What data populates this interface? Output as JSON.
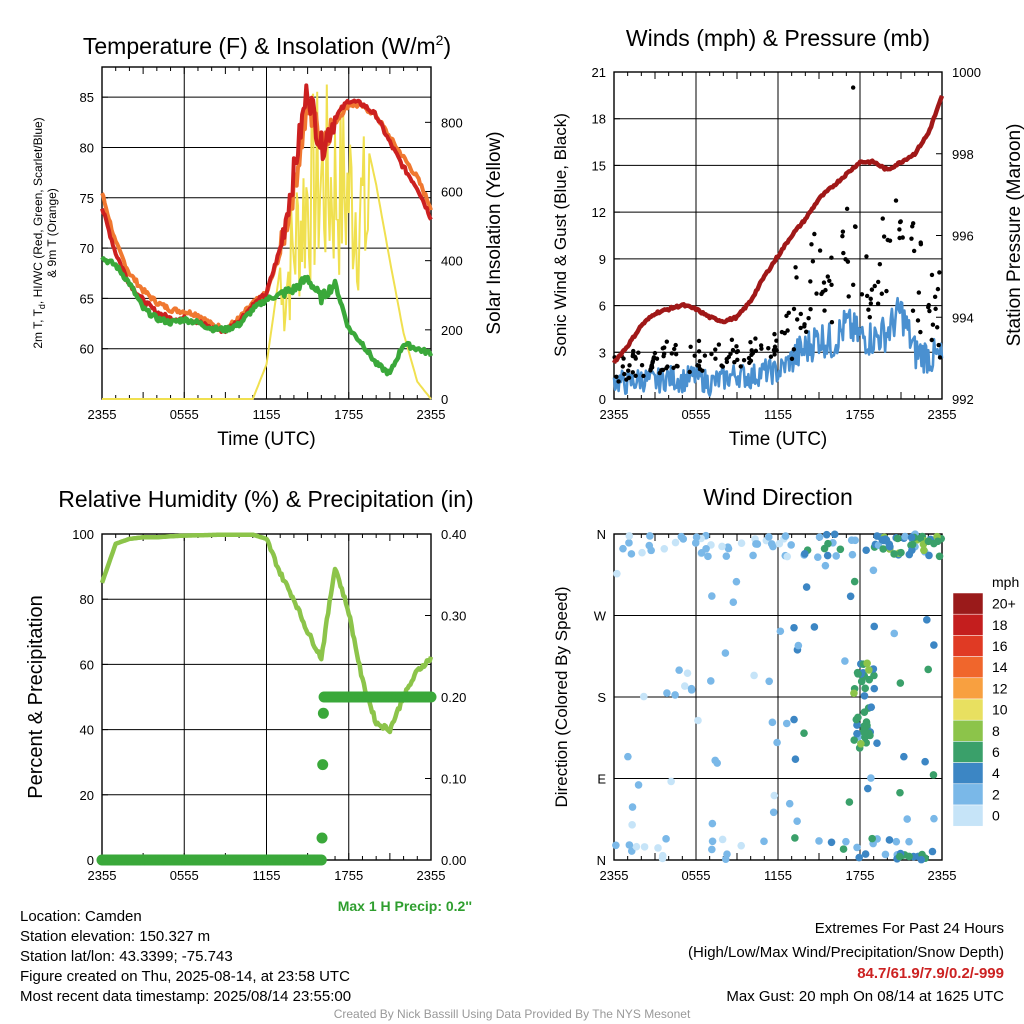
{
  "chart_data": [
    {
      "type": "line",
      "title": "Temperature (F) & Insolation (W/m²)",
      "title_main": "Temperature (F) & Insolation (W/m",
      "title_sup": "2",
      "title_end": ")",
      "xlabel": "Time (UTC)",
      "ylabel_line1": "2m T, T",
      "ylabel_sub": "d",
      "ylabel_line1_end": ", HI/WC (Red, Green, Scarlet/Blue)",
      "ylabel_line2": "& 9m T (Orange)",
      "y2label": "Solar Insolation (Yellow)",
      "xticks": [
        "2355",
        "0555",
        "1155",
        "1755",
        "2355"
      ],
      "ylim": [
        55,
        88
      ],
      "yticks": [
        60,
        65,
        70,
        75,
        80,
        85
      ],
      "y2lim": [
        0,
        960
      ],
      "y2ticks": [
        0,
        200,
        400,
        600,
        800
      ],
      "x_hours": [
        0,
        1,
        2,
        3,
        4,
        5,
        6,
        7,
        8,
        9,
        10,
        11,
        12,
        13,
        14,
        15,
        16,
        17,
        18,
        19,
        20,
        21,
        22,
        23,
        24
      ],
      "series": [
        {
          "name": "9m T",
          "color": "#f07830",
          "values": [
            75.5,
            70.5,
            67.5,
            65.8,
            64.6,
            63.9,
            63.7,
            63.4,
            62.4,
            62.0,
            63.0,
            64.5,
            65.5,
            69.5,
            76.0,
            84.0,
            81.0,
            82.5,
            84.3,
            84.1,
            83.2,
            81.0,
            79.0,
            77.0,
            74.0
          ]
        },
        {
          "name": "2m T",
          "color": "#cc2020",
          "values": [
            74.0,
            69.5,
            66.5,
            64.8,
            63.6,
            63.0,
            63.0,
            62.7,
            62.0,
            61.8,
            62.8,
            64.3,
            65.5,
            70.0,
            77.5,
            86.0,
            80.0,
            83.0,
            84.7,
            84.3,
            83.2,
            80.5,
            78.0,
            76.0,
            73.0
          ]
        },
        {
          "name": "Td",
          "color": "#3aa83a",
          "values": [
            69.0,
            68.3,
            66.5,
            64.0,
            63.0,
            62.6,
            62.9,
            62.6,
            62.0,
            61.9,
            62.4,
            63.9,
            64.9,
            65.4,
            65.9,
            67.0,
            65.0,
            66.5,
            62.0,
            60.5,
            58.5,
            57.5,
            60.5,
            60.0,
            59.5
          ]
        }
      ],
      "insolation": {
        "name": "Solar Insolation",
        "color": "#f0e050",
        "values": [
          0,
          0,
          0,
          0,
          0,
          0,
          0,
          0,
          0,
          0,
          0,
          0,
          100,
          380,
          650,
          880,
          930,
          900,
          880,
          800,
          620,
          400,
          190,
          50,
          0
        ]
      }
    },
    {
      "type": "scatter",
      "title": "Winds (mph) & Pressure (mb)",
      "xlabel": "Time (UTC)",
      "ylabel": "Sonic Wind & Gust (Blue, Black)",
      "y2label": "Station Pressure (Maroon)",
      "xticks": [
        "2355",
        "0555",
        "1155",
        "1755",
        "2355"
      ],
      "ylim": [
        0,
        21
      ],
      "yticks": [
        0,
        3,
        6,
        9,
        12,
        15,
        18,
        21
      ],
      "y2lim": [
        992,
        1000
      ],
      "y2ticks": [
        992,
        994,
        996,
        998,
        1000
      ],
      "x_hours": [
        0,
        1,
        2,
        3,
        4,
        5,
        6,
        7,
        8,
        9,
        10,
        11,
        12,
        13,
        14,
        15,
        16,
        17,
        18,
        19,
        20,
        21,
        22,
        23,
        24
      ],
      "series": [
        {
          "name": "Sonic Wind",
          "color": "#4a90d0",
          "values": [
            1.2,
            1.0,
            1.3,
            1.1,
            1.4,
            1.2,
            1.5,
            1.0,
            1.3,
            1.6,
            1.4,
            1.8,
            1.7,
            2.6,
            3.2,
            4.0,
            3.6,
            4.8,
            4.0,
            3.9,
            4.3,
            5.7,
            3.0,
            2.8,
            2.5
          ]
        },
        {
          "name": "Gust",
          "color": "#000000",
          "values": [
            2.0,
            2.2,
            2.5,
            2.1,
            2.8,
            2.4,
            3.0,
            2.6,
            2.7,
            3.0,
            3.2,
            3.5,
            3.6,
            5.4,
            7.0,
            8.6,
            7.2,
            9.4,
            7.6,
            8.0,
            9.0,
            12.0,
            8.2,
            6.0,
            5.4
          ]
        },
        {
          "name": "Station Pressure",
          "color": "#a01818",
          "values": [
            992.9,
            993.3,
            993.8,
            994.1,
            994.2,
            994.3,
            994.2,
            994.0,
            993.9,
            994.0,
            994.4,
            995.0,
            995.5,
            996.0,
            996.4,
            996.9,
            997.2,
            997.5,
            997.8,
            997.8,
            997.6,
            997.8,
            998.0,
            998.5,
            999.4
          ]
        }
      ]
    },
    {
      "type": "line",
      "title": "Relative Humidity (%) & Precipitation (in)",
      "ylabel": "Percent & Precipitation",
      "xticks": [
        "2355",
        "0555",
        "1155",
        "1755",
        "2355"
      ],
      "ylim": [
        0,
        100
      ],
      "yticks": [
        0,
        20,
        40,
        60,
        80,
        100
      ],
      "y2lim": [
        0,
        0.4
      ],
      "y2ticks": [
        "0.00",
        "0.10",
        "0.20",
        "0.30",
        "0.40"
      ],
      "x_hours": [
        0,
        1,
        2,
        3,
        4,
        5,
        6,
        7,
        8,
        9,
        10,
        11,
        12,
        13,
        14,
        15,
        16,
        17,
        18,
        19,
        20,
        21,
        22,
        23,
        24
      ],
      "series": [
        {
          "name": "Relative Humidity",
          "color": "#8cc44a",
          "values": [
            85,
            97,
            98.5,
            99,
            99,
            99.3,
            99.5,
            99.6,
            99.7,
            99.8,
            99.8,
            99.8,
            98.5,
            88,
            80,
            70,
            62,
            90,
            76,
            55,
            42,
            40,
            50,
            58,
            62
          ]
        },
        {
          "name": "Precipitation",
          "color": "#3aa83a",
          "values": [
            0,
            0,
            0,
            0,
            0,
            0,
            0,
            0,
            0,
            0,
            0,
            0,
            0,
            0,
            0,
            0,
            0.04,
            0.2,
            0.2,
            0.2,
            0.2,
            0.2,
            0.2,
            0.2,
            0.2
          ]
        }
      ],
      "annotation": "Max 1 H Precip: 0.2''"
    },
    {
      "type": "scatter",
      "title": "Wind Direction",
      "ylabel": "Direction (Colored By Speed)",
      "xticks": [
        "2355",
        "0555",
        "1155",
        "1755",
        "2355"
      ],
      "yticks": [
        "N",
        "E",
        "S",
        "W",
        "N"
      ],
      "colorbar": {
        "title": "mph",
        "labels": [
          "20+",
          "18",
          "16",
          "14",
          "12",
          "10",
          "8",
          "6",
          "4",
          "2",
          "0"
        ],
        "colors": [
          "#9a1a1a",
          "#c41e1e",
          "#e03a24",
          "#f0662c",
          "#f8a040",
          "#e8e060",
          "#8cc44a",
          "#3aa06a",
          "#3c86c4",
          "#7ab8e8",
          "#c6e4f8"
        ]
      }
    }
  ],
  "info": {
    "location": "Location: Camden",
    "elevation": "Station elevation: 150.327 m",
    "latlon": "Station lat/lon: 43.3399; -75.743",
    "created": "Figure created on Thu, 2025-08-14, at 23:58 UTC",
    "recent": "Most recent data timestamp: 2025/08/14 23:55:00"
  },
  "extremes": {
    "title": "Extremes For Past 24 Hours",
    "subtitle": "(High/Low/Max Wind/Precipitation/Snow Depth)",
    "values": "84.7/61.9/7.9/0.2/-999",
    "gust": "Max Gust: 20 mph On 08/14 at 1625 UTC"
  },
  "credit": "Created By Nick Bassill Using Data Provided By The NYS Mesonet"
}
